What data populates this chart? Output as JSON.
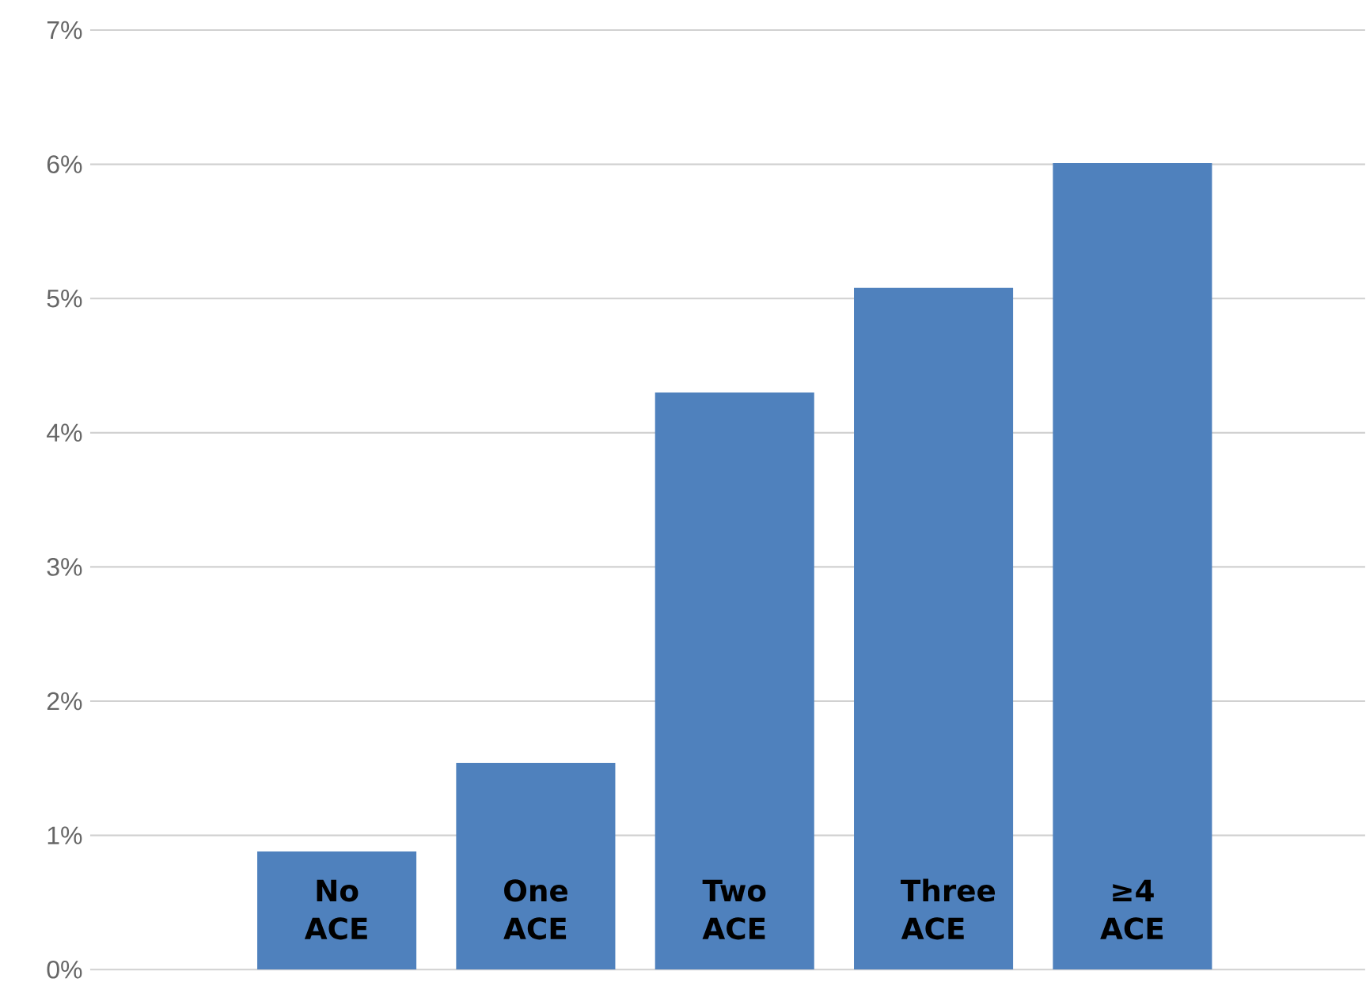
{
  "chart_data": {
    "type": "bar",
    "categories": [
      "No ACE",
      "One ACE",
      "Two ACE",
      "Three ACE",
      "≥4 ACE"
    ],
    "values": [
      0.88,
      1.54,
      4.3,
      5.08,
      6.01
    ],
    "color": "#4f81bd",
    "ylim": [
      0,
      7
    ],
    "yticks": [
      {
        "value": 0,
        "label": "0%"
      },
      {
        "value": 1,
        "label": "1%"
      },
      {
        "value": 2,
        "label": "2%"
      },
      {
        "value": 3,
        "label": "3%"
      },
      {
        "value": 4,
        "label": "4%"
      },
      {
        "value": 5,
        "label": "5%"
      },
      {
        "value": 6,
        "label": "6%"
      },
      {
        "value": 7,
        "label": "7%"
      }
    ],
    "grid": "y"
  }
}
